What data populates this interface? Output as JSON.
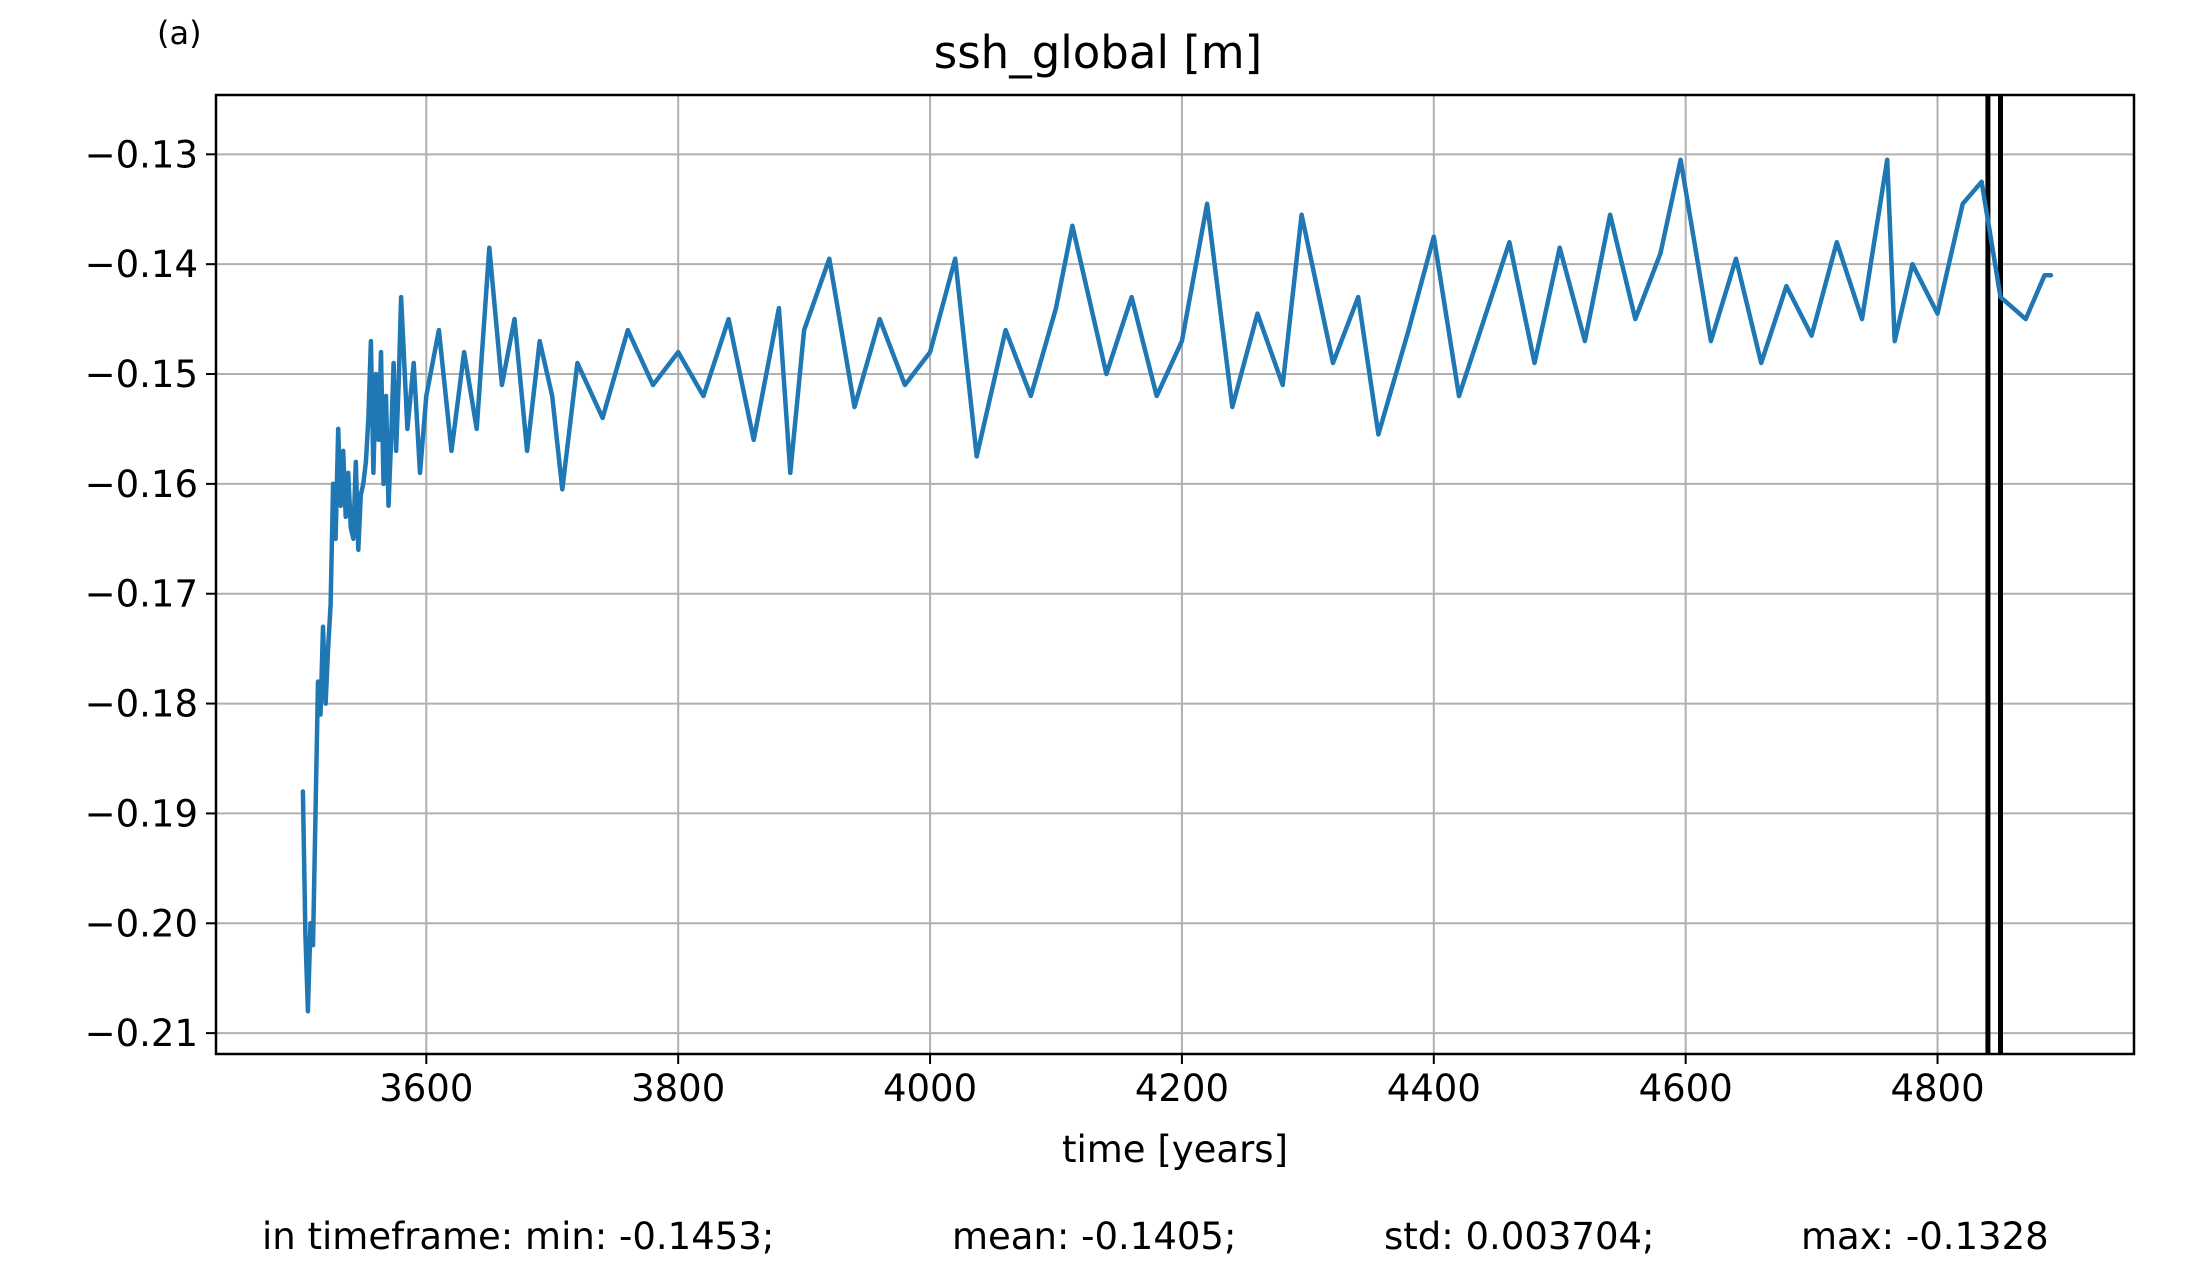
{
  "panel_label": "(a)",
  "stats": {
    "min": "in timeframe: min: -0.1453;",
    "mean": "mean: -0.1405;",
    "std": "std: 0.003704;",
    "max": "max: -0.1328"
  },
  "colors": {
    "series": "#1f77b4",
    "grid": "#b0b0b0",
    "markers": "#000000"
  },
  "chart_data": {
    "type": "line",
    "title": "ssh_global [m]",
    "xlabel": "time [years]",
    "ylabel": "",
    "xlim": [
      3433,
      4956
    ],
    "ylim": [
      -0.2119,
      -0.1246
    ],
    "xticks": [
      3600,
      3800,
      4000,
      4200,
      4400,
      4600,
      4800
    ],
    "xtick_labels": [
      "3600",
      "3800",
      "4000",
      "4200",
      "4400",
      "4600",
      "4800"
    ],
    "yticks": [
      -0.21,
      -0.2,
      -0.19,
      -0.18,
      -0.17,
      -0.16,
      -0.15,
      -0.14,
      -0.13
    ],
    "ytick_labels": [
      "−0.21",
      "−0.20",
      "−0.19",
      "−0.18",
      "−0.17",
      "−0.16",
      "−0.15",
      "−0.14",
      "−0.13"
    ],
    "grid": true,
    "legend": "none",
    "vertical_lines": [
      4840,
      4850
    ],
    "series": [
      {
        "x": [
          3502,
          3504,
          3506,
          3508,
          3510,
          3512,
          3514,
          3516,
          3518,
          3520,
          3522,
          3524,
          3526,
          3528,
          3530,
          3532,
          3534,
          3536,
          3538,
          3540,
          3542,
          3544,
          3546,
          3548,
          3550,
          3552,
          3554,
          3556,
          3558,
          3560,
          3562,
          3564,
          3566,
          3568,
          3570,
          3572,
          3574,
          3576,
          3578,
          3580,
          3585,
          3590,
          3595,
          3600,
          3610,
          3620,
          3630,
          3640,
          3650,
          3660,
          3670,
          3680,
          3690,
          3700,
          3708,
          3720,
          3740,
          3760,
          3780,
          3800,
          3820,
          3840,
          3860,
          3880,
          3889,
          3900,
          3920,
          3940,
          3960,
          3980,
          4000,
          4020,
          4037,
          4060,
          4080,
          4100,
          4113,
          4140,
          4160,
          4180,
          4200,
          4220,
          4240,
          4260,
          4280,
          4295,
          4320,
          4340,
          4356,
          4380,
          4400,
          4420,
          4440,
          4460,
          4480,
          4500,
          4520,
          4540,
          4560,
          4580,
          4596,
          4620,
          4640,
          4660,
          4680,
          4700,
          4720,
          4740,
          4760,
          4766,
          4780,
          4800,
          4820,
          4835,
          4850,
          4870,
          4885,
          4890
        ],
        "y": [
          -0.188,
          -0.201,
          -0.208,
          -0.2,
          -0.202,
          -0.19,
          -0.178,
          -0.181,
          -0.173,
          -0.18,
          -0.175,
          -0.171,
          -0.16,
          -0.165,
          -0.155,
          -0.162,
          -0.157,
          -0.163,
          -0.159,
          -0.164,
          -0.165,
          -0.158,
          -0.166,
          -0.161,
          -0.16,
          -0.158,
          -0.154,
          -0.147,
          -0.159,
          -0.15,
          -0.156,
          -0.148,
          -0.16,
          -0.152,
          -0.162,
          -0.156,
          -0.149,
          -0.157,
          -0.151,
          -0.143,
          -0.155,
          -0.149,
          -0.159,
          -0.152,
          -0.146,
          -0.157,
          -0.148,
          -0.155,
          -0.1385,
          -0.151,
          -0.145,
          -0.157,
          -0.147,
          -0.152,
          -0.1605,
          -0.149,
          -0.154,
          -0.146,
          -0.151,
          -0.148,
          -0.152,
          -0.145,
          -0.156,
          -0.144,
          -0.159,
          -0.146,
          -0.1395,
          -0.153,
          -0.145,
          -0.151,
          -0.148,
          -0.1395,
          -0.1575,
          -0.146,
          -0.152,
          -0.144,
          -0.1365,
          -0.15,
          -0.143,
          -0.152,
          -0.147,
          -0.1345,
          -0.153,
          -0.1445,
          -0.151,
          -0.1355,
          -0.149,
          -0.143,
          -0.1555,
          -0.146,
          -0.1375,
          -0.152,
          -0.145,
          -0.138,
          -0.149,
          -0.1385,
          -0.147,
          -0.1355,
          -0.145,
          -0.139,
          -0.1305,
          -0.147,
          -0.1395,
          -0.149,
          -0.142,
          -0.1465,
          -0.138,
          -0.145,
          -0.1305,
          -0.147,
          -0.14,
          -0.1445,
          -0.1345,
          -0.1325,
          -0.143,
          -0.145,
          -0.141,
          -0.141
        ]
      }
    ]
  }
}
